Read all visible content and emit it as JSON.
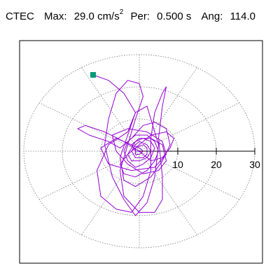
{
  "header": {
    "station": "CTEC",
    "max_label": "Max:",
    "max_value": "29.0 cm/s",
    "max_exp": "2",
    "per_label": "Per:",
    "per_value": "0.500 s",
    "ang_label": "Ang:",
    "ang_value": "114.0"
  },
  "chart_data": {
    "type": "polar-orbit",
    "title": "",
    "radial_ticks": [
      10,
      20,
      30
    ],
    "radial_range": [
      0,
      30
    ],
    "grid": true,
    "trace_color": "#9400d3",
    "end_marker_color": "#009a7a",
    "peak": {
      "amplitude": 29.0,
      "angle_deg": 114.0
    },
    "trace": [
      [
        -12,
        23.7
      ],
      [
        -8,
        22
      ],
      [
        -4,
        18
      ],
      [
        -1,
        12
      ],
      [
        -3,
        6
      ],
      [
        -8,
        2
      ],
      [
        -11,
        -6
      ],
      [
        -10,
        -14
      ],
      [
        -6,
        -18
      ],
      [
        -2,
        -19
      ],
      [
        1,
        -14
      ],
      [
        3,
        -6
      ],
      [
        3,
        4
      ],
      [
        4,
        12
      ],
      [
        6,
        18
      ],
      [
        7,
        20
      ],
      [
        6,
        14
      ],
      [
        5,
        4
      ],
      [
        6,
        -8
      ],
      [
        6,
        -15
      ],
      [
        4,
        -19
      ],
      [
        0,
        -19
      ],
      [
        -4,
        -14
      ],
      [
        -5,
        -6
      ],
      [
        -3,
        2
      ],
      [
        -1,
        10
      ],
      [
        1,
        17
      ],
      [
        0,
        21
      ],
      [
        -3,
        22
      ],
      [
        -6,
        18
      ],
      [
        -8,
        10
      ],
      [
        -9,
        2
      ],
      [
        -7,
        -8
      ],
      [
        -4,
        -15
      ],
      [
        -1,
        -20
      ],
      [
        2,
        -16
      ],
      [
        4,
        -8
      ],
      [
        5,
        2
      ],
      [
        3,
        10
      ],
      [
        2,
        14
      ],
      [
        -1,
        12
      ],
      [
        -3,
        5
      ],
      [
        -5,
        -2
      ],
      [
        -4,
        -9
      ],
      [
        -1,
        -11
      ],
      [
        3,
        -8
      ],
      [
        6,
        -3
      ],
      [
        8,
        2
      ],
      [
        7,
        7
      ],
      [
        4,
        9
      ],
      [
        1,
        8
      ],
      [
        -2,
        4
      ],
      [
        -5,
        1
      ],
      [
        -8,
        3
      ],
      [
        -13,
        5
      ],
      [
        -16,
        7
      ],
      [
        -14,
        8
      ],
      [
        -9,
        6
      ],
      [
        -4,
        3
      ],
      [
        0,
        0
      ],
      [
        3,
        -3
      ],
      [
        6,
        -2
      ],
      [
        8,
        1
      ],
      [
        9,
        4
      ],
      [
        7,
        6
      ],
      [
        3,
        5
      ],
      [
        0,
        2
      ],
      [
        -3,
        -1
      ],
      [
        -5,
        -4
      ],
      [
        -4,
        -7
      ],
      [
        -1,
        -8
      ],
      [
        2,
        -6
      ],
      [
        4,
        -3
      ],
      [
        5,
        0
      ],
      [
        4,
        3
      ],
      [
        2,
        5
      ],
      [
        -1,
        5
      ],
      [
        -3,
        3
      ],
      [
        -4,
        0
      ],
      [
        -3,
        -3
      ],
      [
        -1,
        -5
      ],
      [
        1,
        -4
      ],
      [
        3,
        -2
      ],
      [
        4,
        1
      ],
      [
        3,
        3
      ],
      [
        1,
        4
      ],
      [
        -1,
        3
      ],
      [
        -2,
        1
      ],
      [
        -3,
        -1
      ],
      [
        -2,
        -3
      ],
      [
        0,
        -3
      ],
      [
        2,
        -2
      ],
      [
        3,
        0
      ],
      [
        2,
        2
      ],
      [
        0,
        3
      ],
      [
        -1,
        2
      ],
      [
        -2,
        0
      ],
      [
        -1,
        -2
      ],
      [
        1,
        -2
      ],
      [
        2,
        -1
      ],
      [
        2,
        1
      ],
      [
        1,
        2
      ],
      [
        -1,
        1
      ],
      [
        -1,
        -1
      ],
      [
        0,
        -1
      ],
      [
        1,
        0
      ],
      [
        0,
        1
      ],
      [
        -6,
        4
      ],
      [
        -10,
        1
      ],
      [
        -8,
        -4
      ],
      [
        -2,
        -6
      ],
      [
        4,
        -5
      ],
      [
        7,
        -1
      ],
      [
        6,
        3
      ],
      [
        2,
        6
      ],
      [
        -3,
        7
      ],
      [
        -7,
        5
      ],
      [
        -6,
        0
      ],
      [
        -3,
        -4
      ],
      [
        1,
        -7
      ],
      [
        5,
        -6
      ],
      [
        7,
        -3
      ],
      [
        6,
        2
      ],
      [
        3,
        4
      ],
      [
        0,
        4
      ],
      [
        -2,
        2
      ],
      [
        -1,
        0
      ],
      [
        0,
        0
      ]
    ]
  }
}
